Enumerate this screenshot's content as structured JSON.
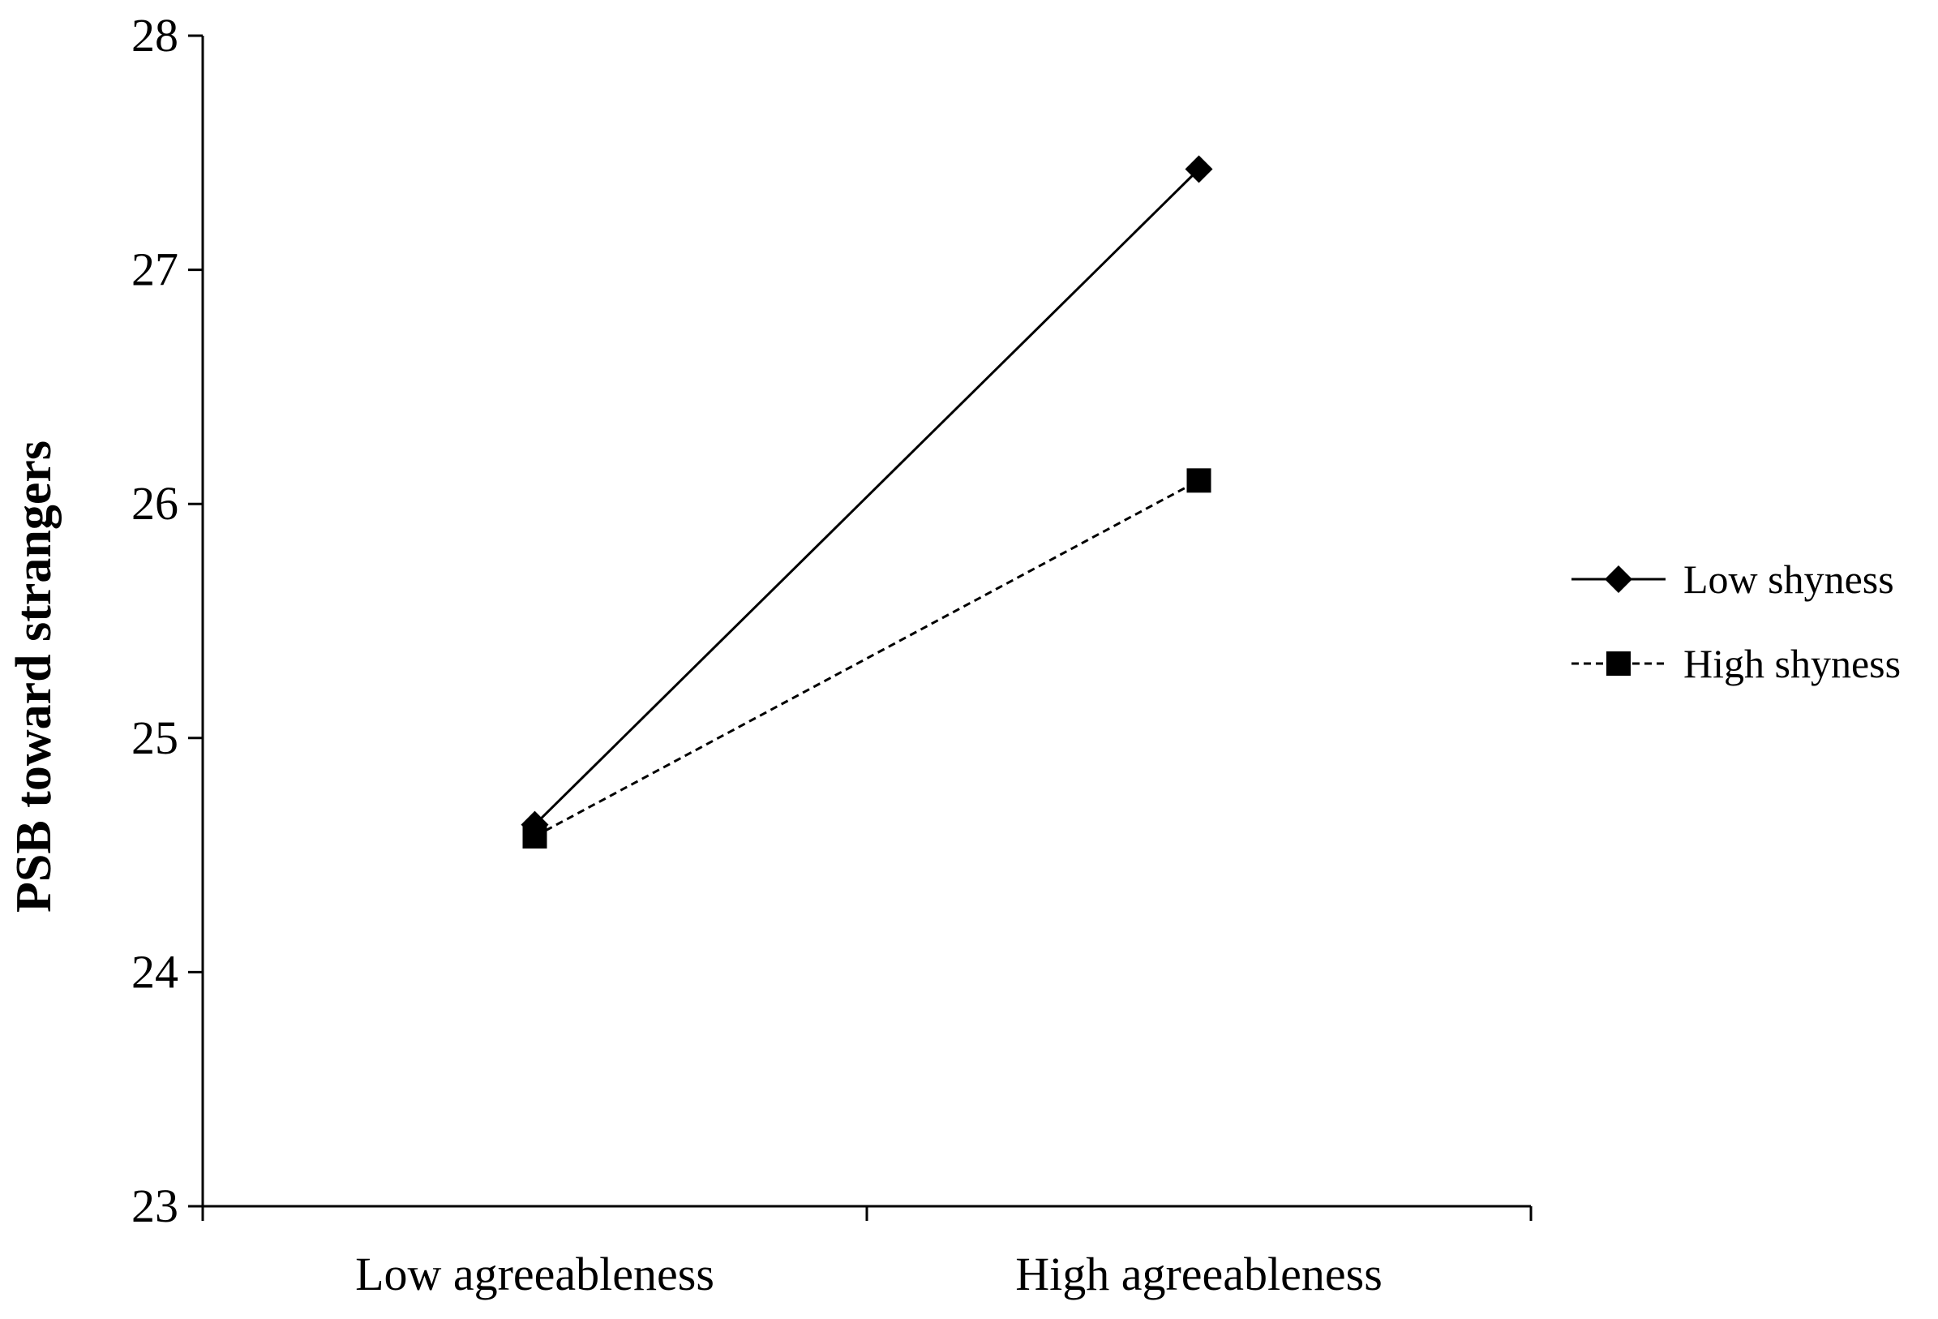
{
  "chart_data": {
    "type": "line",
    "categories": [
      "Low agreeableness",
      "High agreeableness"
    ],
    "ylabel": "PSB toward strangers",
    "xlabel": "",
    "ylim": [
      23,
      28
    ],
    "yticks": [
      "23",
      "24",
      "25",
      "26",
      "27",
      "28"
    ],
    "grid": false,
    "legend_position": "right",
    "series": [
      {
        "name": "Low shyness",
        "values": [
          24.63,
          27.43
        ],
        "line_style": "solid",
        "marker": "diamond",
        "color": "#000000"
      },
      {
        "name": "High shyness",
        "values": [
          24.58,
          26.1
        ],
        "line_style": "dashed",
        "marker": "square",
        "color": "#000000"
      }
    ]
  }
}
